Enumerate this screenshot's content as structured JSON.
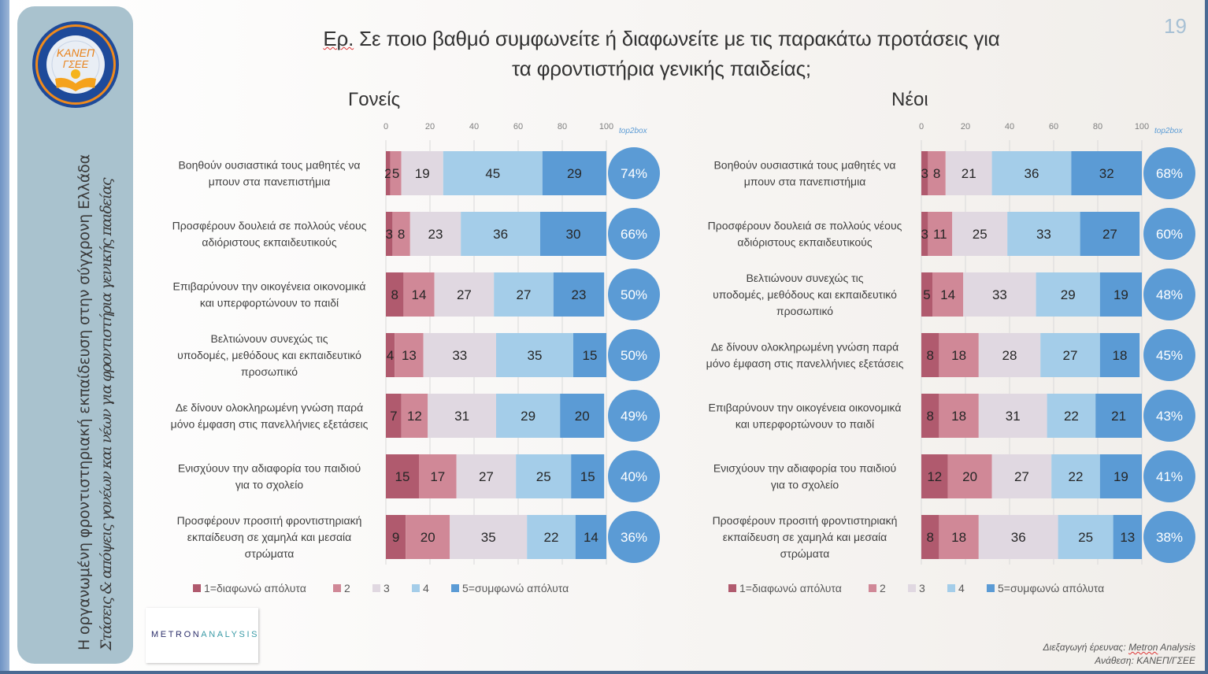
{
  "slide": {
    "title_prefix": "Ερ.",
    "title_line1": " Σε ποιο βαθμό συμφωνείτε ή διαφωνείτε με τις παρακάτω προτάσεις για",
    "title_line2": "τα φροντιστήρια γενικής παιδείας;",
    "page_number": "19",
    "sidebar_line1": "Η οργανωμένη φροντιστηριακή εκπαίδευση στην σύγχρονη Ελλάδα",
    "sidebar_line2": "Στάσεις & απόψεις γονέων και νέων για φροντιστήρια γενικής παιδείας",
    "logo_text_top": "ΚΑΝΕΠ",
    "logo_text_bottom": "ΓΣΕΕ",
    "logo_ring_text": "ΚΕΝΤΡΟ ΑΝΑΠΤΥΞΗΣ ΕΚΠΑΙΔΕΥΤΙΚΗΣ ΠΟΛΙΤΙΚΗΣ · ΓΕΝΙΚΗ ΣΥΝΟΜΟΣΠΟΝΔΙΑ ΕΡΓΑΤΩΝ ΕΛΛΑΔΑΣ",
    "metron_logo_part1": "METRON",
    "metron_logo_part2": "ANALYSIS",
    "credit_line1_label": "Διεξαγωγή έρευνας: ",
    "credit_line1_metron": "Metron",
    "credit_line1_rest": " Analysis",
    "credit_line2": "Ανάθεση: ΚΑΝΕΠ/ΓΣΕΕ"
  },
  "colors": {
    "c1": "#b05a6e",
    "c2": "#d08897",
    "c3": "#e0d8e1",
    "c4": "#a4cde9",
    "c5": "#5b9bd5",
    "top2box_circle": "#5b9bd5",
    "top2box_label": "#5b9bd5"
  },
  "chart_data": [
    {
      "type": "bar",
      "orientation": "horizontal-stacked-100",
      "title": "Γονείς",
      "xlim": [
        0,
        100
      ],
      "xticks": [
        "0",
        "20",
        "40",
        "60",
        "80",
        "100"
      ],
      "extra_column_label": "top2box",
      "grid": true,
      "legend": "bottom",
      "series_names": [
        "1=διαφωνώ απόλυτα",
        "2",
        "3",
        "4",
        "5=συμφωνώ απόλυτα"
      ],
      "categories": [
        "Βοηθούν ουσιαστικά τους μαθητές να μπουν στα πανεπιστήμια",
        "Προσφέρουν δουλειά σε πολλούς νέους αδιόριστους εκπαιδευτικούς",
        "Επιβαρύνουν την οικογένεια οικονομικά και υπερφορτώνουν το παιδί",
        "Βελτιώνουν συνεχώς τις υποδομές, μεθόδους και εκπαιδευτικό προσωπικό",
        "Δε δίνουν ολοκληρωμένη γνώση παρά μόνο έμφαση στις πανελλήνιες εξετάσεις",
        "Ενισχύουν την αδιαφορία του παιδιού για το σχολείο",
        "Προσφέρουν προσιτή φροντιστηριακή εκπαίδευση σε χαμηλά και μεσαία στρώματα"
      ],
      "category_lines": [
        [
          "Βοηθούν ουσιαστικά τους μαθητές να",
          "μπουν στα πανεπιστήμια"
        ],
        [
          "Προσφέρουν δουλειά σε πολλούς νέους",
          "αδιόριστους εκπαιδευτικούς"
        ],
        [
          "Επιβαρύνουν την οικογένεια οικονομικά",
          "και υπερφορτώνουν το παιδί"
        ],
        [
          "Βελτιώνουν συνεχώς τις",
          "υποδομές, μεθόδους και εκπαιδευτικό",
          "προσωπικό"
        ],
        [
          "Δε δίνουν ολοκληρωμένη γνώση παρά",
          "μόνο έμφαση στις πανελλήνιες εξετάσεις"
        ],
        [
          "Ενισχύουν την αδιαφορία του παιδιού",
          "για το σχολείο"
        ],
        [
          "Προσφέρουν προσιτή φροντιστηριακή",
          "εκπαίδευση σε χαμηλά και μεσαία",
          "στρώματα"
        ]
      ],
      "values": [
        [
          2,
          5,
          19,
          45,
          29
        ],
        [
          3,
          8,
          23,
          36,
          30
        ],
        [
          8,
          14,
          27,
          27,
          23
        ],
        [
          4,
          13,
          33,
          35,
          15
        ],
        [
          7,
          12,
          31,
          29,
          20
        ],
        [
          15,
          17,
          27,
          25,
          15
        ],
        [
          9,
          20,
          35,
          22,
          14
        ]
      ],
      "top2box": [
        "74%",
        "66%",
        "50%",
        "50%",
        "49%",
        "40%",
        "36%"
      ]
    },
    {
      "type": "bar",
      "orientation": "horizontal-stacked-100",
      "title": "Νέοι",
      "xlim": [
        0,
        100
      ],
      "xticks": [
        "0",
        "20",
        "40",
        "60",
        "80",
        "100"
      ],
      "extra_column_label": "top2box",
      "grid": true,
      "legend": "bottom",
      "series_names": [
        "1=διαφωνώ απόλυτα",
        "2",
        "3",
        "4",
        "5=συμφωνώ απόλυτα"
      ],
      "categories": [
        "Βοηθούν ουσιαστικά τους μαθητές να μπουν στα πανεπιστήμια",
        "Προσφέρουν δουλειά σε πολλούς νέους αδιόριστους εκπαιδευτικούς",
        "Βελτιώνουν συνεχώς τις υποδομές, μεθόδους και εκπαιδευτικό προσωπικό",
        "Δε δίνουν ολοκληρωμένη γνώση παρά μόνο έμφαση στις πανελλήνιες εξετάσεις",
        "Επιβαρύνουν την οικογένεια οικονομικά και υπερφορτώνουν το παιδί",
        "Ενισχύουν την αδιαφορία του παιδιού για το σχολείο",
        "Προσφέρουν προσιτή φροντιστηριακή εκπαίδευση σε χαμηλά και μεσαία στρώματα"
      ],
      "category_lines": [
        [
          "Βοηθούν ουσιαστικά τους μαθητές να",
          "μπουν στα πανεπιστήμια"
        ],
        [
          "Προσφέρουν δουλειά σε πολλούς νέους",
          "αδιόριστους εκπαιδευτικούς"
        ],
        [
          "Βελτιώνουν συνεχώς τις",
          "υποδομές, μεθόδους και εκπαιδευτικό",
          "προσωπικό"
        ],
        [
          "Δε δίνουν ολοκληρωμένη γνώση παρά",
          "μόνο έμφαση στις πανελλήνιες εξετάσεις"
        ],
        [
          "Επιβαρύνουν την οικογένεια οικονομικά",
          "και υπερφορτώνουν το παιδί"
        ],
        [
          "Ενισχύουν την αδιαφορία του παιδιού",
          "για το σχολείο"
        ],
        [
          "Προσφέρουν προσιτή φροντιστηριακή",
          "εκπαίδευση σε χαμηλά και μεσαία",
          "στρώματα"
        ]
      ],
      "values": [
        [
          3,
          8,
          21,
          36,
          32
        ],
        [
          3,
          11,
          25,
          33,
          27
        ],
        [
          5,
          14,
          33,
          29,
          19
        ],
        [
          8,
          18,
          28,
          27,
          18
        ],
        [
          8,
          18,
          31,
          22,
          21
        ],
        [
          12,
          20,
          27,
          22,
          19
        ],
        [
          8,
          18,
          36,
          25,
          13
        ]
      ],
      "top2box": [
        "68%",
        "60%",
        "48%",
        "45%",
        "43%",
        "41%",
        "38%"
      ]
    }
  ]
}
